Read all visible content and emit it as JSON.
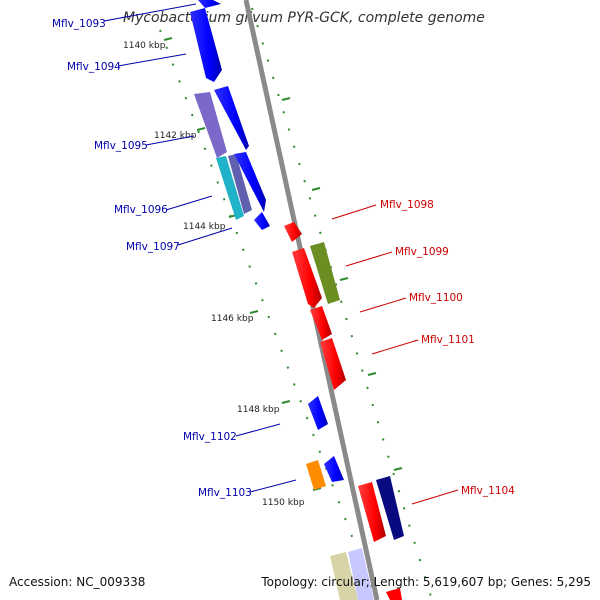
{
  "title": "Mycobacterium gilvum PYR-GCK, complete genome",
  "footer": {
    "accession": "Accession: NC_009338",
    "summary": "Topology: circular; Length: 5,619,607 bp; Genes: 5,295"
  },
  "ticks": [
    "1140 kbp",
    "1142 kbp",
    "1144 kbp",
    "1146 kbp",
    "1148 kbp",
    "1150 kbp"
  ],
  "genes": [
    {
      "label": "Mflv_1093",
      "strand": "forward",
      "color": "#0000ff"
    },
    {
      "label": "Mflv_1094",
      "strand": "forward",
      "color": "#0000ff"
    },
    {
      "label": "Mflv_1095",
      "strand": "forward",
      "color": "#7b68c8"
    },
    {
      "label": "Mflv_1096",
      "strand": "forward",
      "color": "#20b2c8"
    },
    {
      "label": "Mflv_1097",
      "strand": "forward",
      "color": "#0000ff"
    },
    {
      "label": "Mflv_1098",
      "strand": "reverse",
      "color": "#ff0000"
    },
    {
      "label": "Mflv_1099",
      "strand": "reverse",
      "color": "#6b8e23"
    },
    {
      "label": "Mflv_1100",
      "strand": "reverse",
      "color": "#ff0000"
    },
    {
      "label": "Mflv_1101",
      "strand": "reverse",
      "color": "#ff0000"
    },
    {
      "label": "Mflv_1102",
      "strand": "forward",
      "color": "#0000ff"
    },
    {
      "label": "Mflv_1103",
      "strand": "forward",
      "color": "#ff8c00"
    },
    {
      "label": "Mflv_1104",
      "strand": "reverse",
      "color": "#ff0000"
    }
  ],
  "colors": {
    "forward_label": "#0000aa",
    "reverse_label": "#cc0000",
    "backbone": "#888888",
    "tick_marks": "#2e8b2e"
  }
}
